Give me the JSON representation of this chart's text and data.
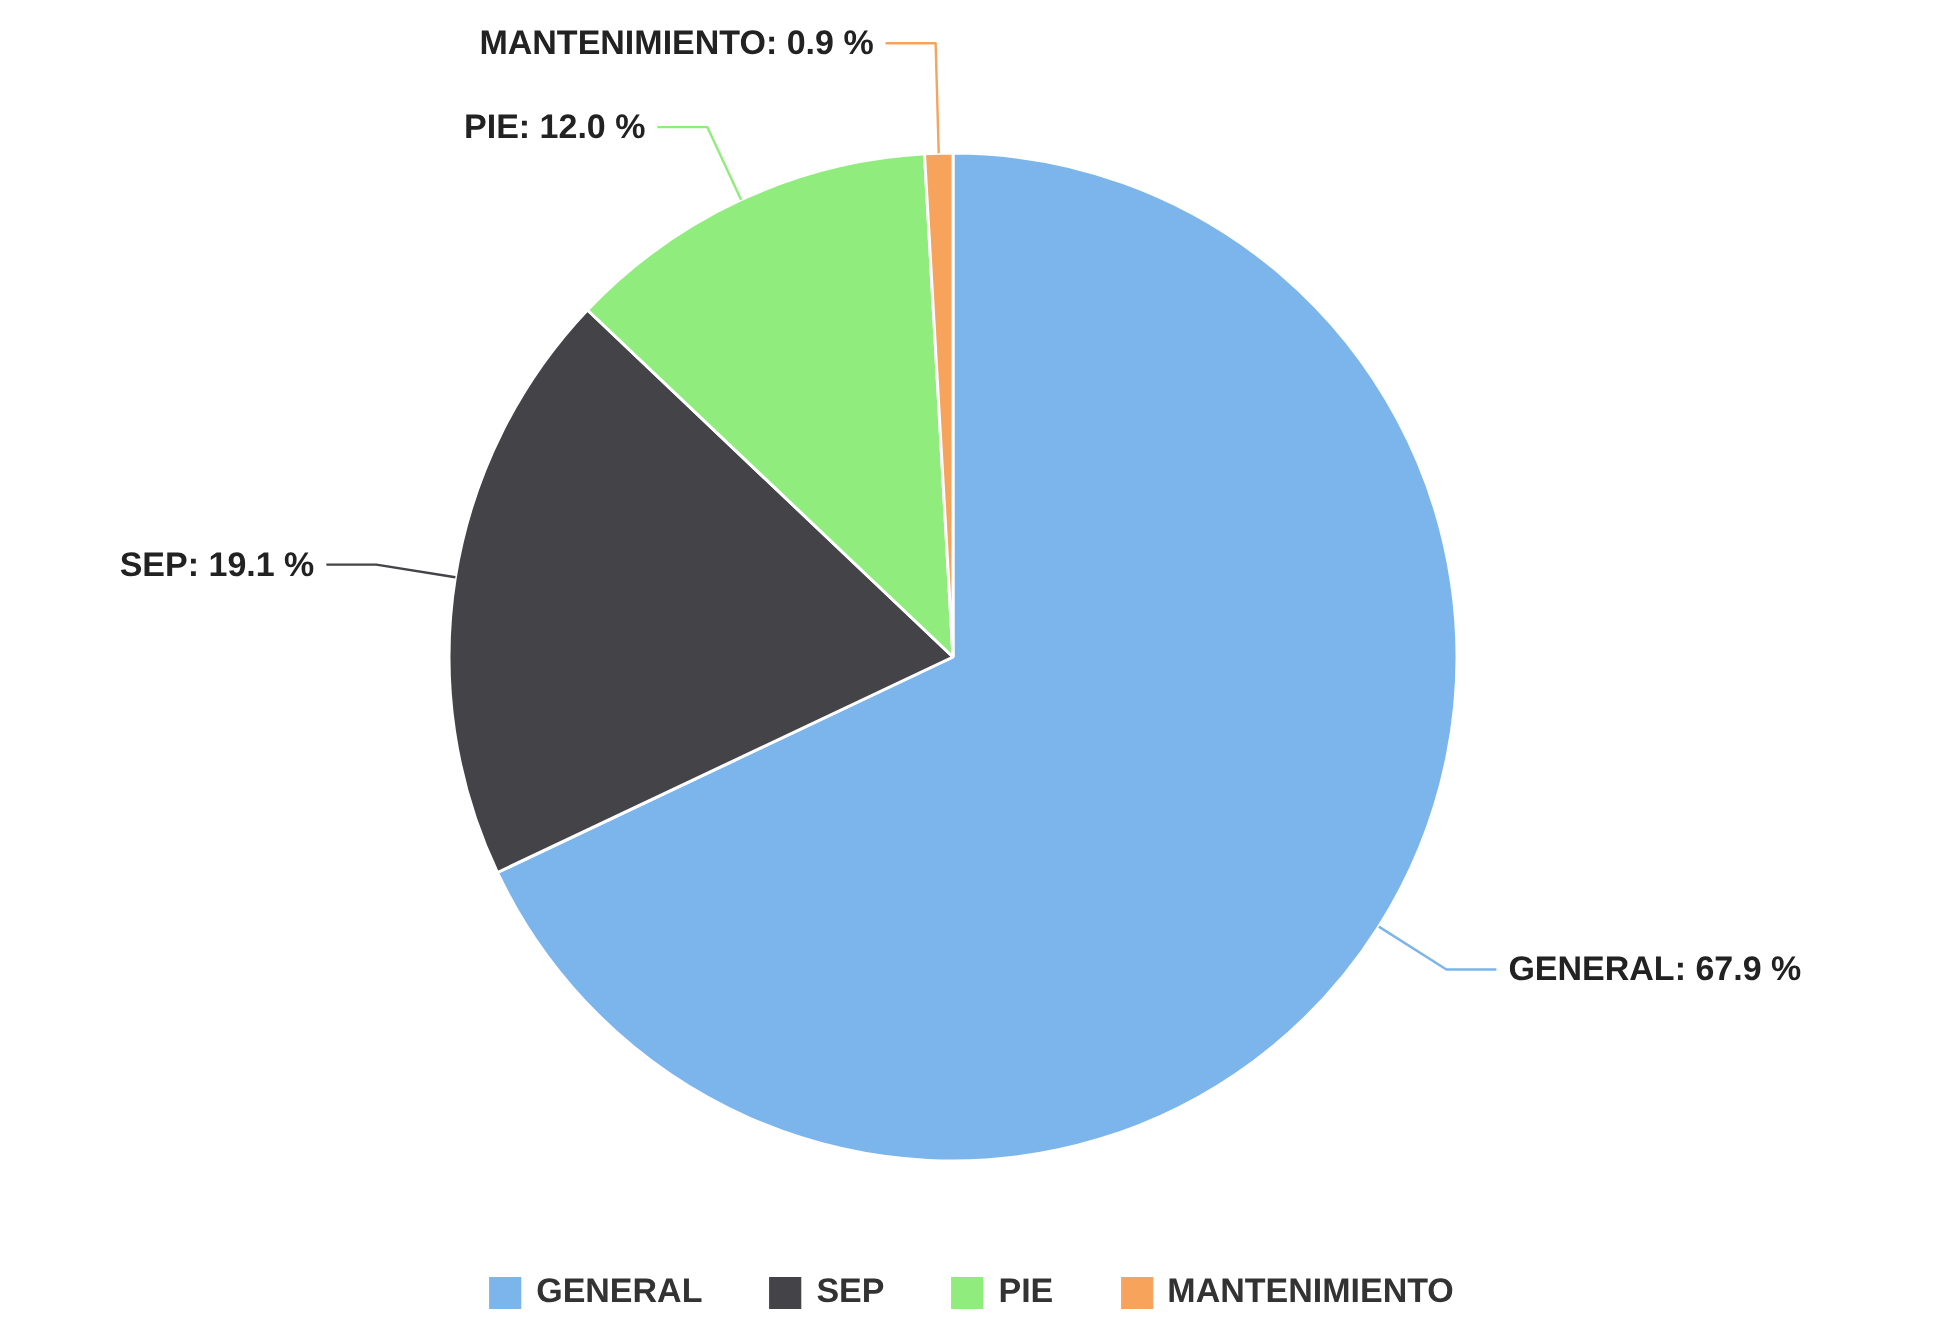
{
  "chart_data": {
    "type": "pie",
    "categories": [
      "GENERAL",
      "SEP",
      "PIE",
      "MANTENIMIENTO"
    ],
    "values": [
      67.9,
      19.1,
      12.0,
      0.9
    ],
    "colors": [
      "#7cb5ec",
      "#434348",
      "#90ed7d",
      "#f7a35c"
    ],
    "value_labels": [
      "GENERAL: 67.9 %",
      "SEP: 19.1 %",
      "PIE: 12.0 %",
      "MANTENIMIENTO: 0.9 %"
    ],
    "legend": "bottom"
  }
}
